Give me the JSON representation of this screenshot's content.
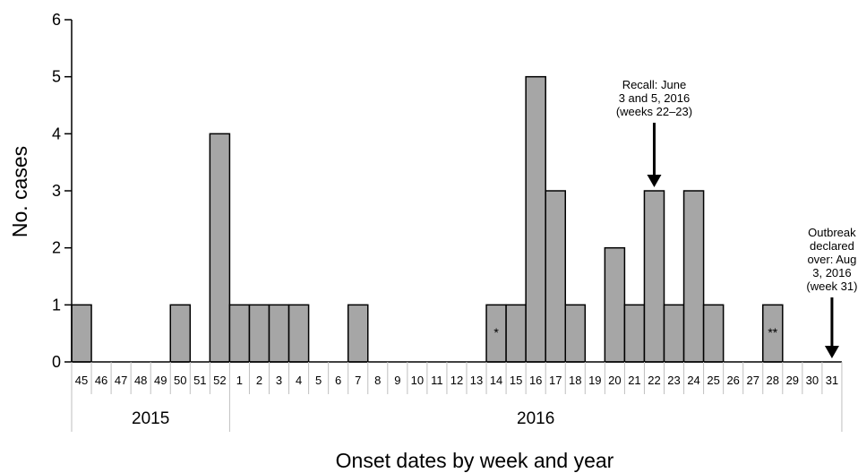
{
  "chart_data": {
    "type": "bar",
    "xlabel": "Onset dates by week and year",
    "ylabel": "No. cases",
    "ylim": [
      0,
      6
    ],
    "yticks": [
      "0",
      "1",
      "2",
      "3",
      "4",
      "5",
      "6"
    ],
    "categories": [
      "45",
      "46",
      "47",
      "48",
      "49",
      "50",
      "51",
      "52",
      "1",
      "2",
      "3",
      "4",
      "5",
      "6",
      "7",
      "8",
      "9",
      "10",
      "11",
      "12",
      "13",
      "14",
      "15",
      "16",
      "17",
      "18",
      "19",
      "20",
      "21",
      "22",
      "23",
      "24",
      "25",
      "26",
      "27",
      "28",
      "29",
      "30",
      "31"
    ],
    "values": [
      1,
      0,
      0,
      0,
      0,
      1,
      0,
      4,
      1,
      1,
      1,
      1,
      0,
      0,
      1,
      0,
      0,
      0,
      0,
      0,
      0,
      1,
      1,
      5,
      3,
      1,
      0,
      2,
      1,
      3,
      1,
      3,
      1,
      0,
      0,
      1,
      0,
      0,
      0
    ],
    "years": [
      {
        "label": "2015",
        "start_week": "45",
        "end_week": "52"
      },
      {
        "label": "2016",
        "start_week": "1",
        "end_week": "31"
      }
    ],
    "bar_markers": [
      {
        "week": "14",
        "text": "*"
      },
      {
        "week": "28",
        "text": "**"
      }
    ],
    "annotations": [
      {
        "week": "22",
        "lines": [
          "Recall: June",
          "3 and 5, 2016",
          "(weeks 22–23)"
        ]
      },
      {
        "week": "31",
        "lines": [
          "Outbreak",
          "declared",
          "over: Aug",
          "3, 2016",
          "(week 31)"
        ]
      }
    ],
    "colors": {
      "bar_fill": "#a6a6a6",
      "bar_stroke": "#000000",
      "axis": "#000000",
      "week_divider": "#bfbfbf"
    },
    "grid": false,
    "legend": "none"
  }
}
